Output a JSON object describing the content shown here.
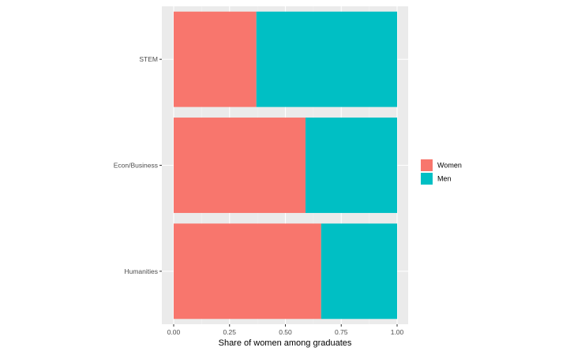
{
  "chart_data": {
    "type": "bar",
    "orientation": "horizontal",
    "stacked": true,
    "categories": [
      "STEM",
      "Econ/Business",
      "Humanities"
    ],
    "series": [
      {
        "name": "Women",
        "values": [
          0.37,
          0.59,
          0.66
        ],
        "color": "#F8766D"
      },
      {
        "name": "Men",
        "values": [
          0.63,
          0.41,
          0.34
        ],
        "color": "#00BFC4"
      }
    ],
    "xlabel": "Share of women among graduates",
    "ylabel": "",
    "title": "",
    "xlim": [
      0,
      1
    ],
    "xticks": [
      "0.00",
      "0.25",
      "0.50",
      "0.75",
      "1.00"
    ],
    "xtick_values": [
      0,
      0.25,
      0.5,
      0.75,
      1.0
    ],
    "grid": true,
    "panel_background": "#EBEBEB",
    "legend_position": "right"
  }
}
